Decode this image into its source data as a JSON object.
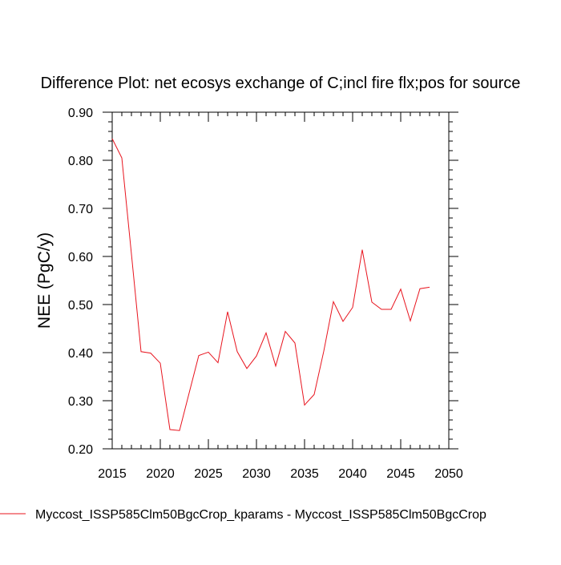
{
  "chart_data": {
    "type": "line",
    "title": "Difference Plot: net ecosys exchange of C;incl fire flx;pos for source",
    "xlabel": "",
    "ylabel": "NEE  (PgC/y)",
    "xlim": [
      2015,
      2050
    ],
    "ylim": [
      0.2,
      0.9
    ],
    "xticks": [
      2015,
      2020,
      2025,
      2030,
      2035,
      2040,
      2045,
      2050
    ],
    "yticks": [
      0.2,
      0.3,
      0.4,
      0.5,
      0.6,
      0.7,
      0.8,
      0.9
    ],
    "xtick_labels": [
      "2015",
      "2020",
      "2025",
      "2030",
      "2035",
      "2040",
      "2045",
      "2050"
    ],
    "ytick_labels": [
      "0.20",
      "0.30",
      "0.40",
      "0.50",
      "0.60",
      "0.70",
      "0.80",
      "0.90"
    ],
    "grid": false,
    "legend_position": "bottom",
    "series": [
      {
        "name": "Myccost_ISSP585Clm50BgcCrop_kparams - Myccost_ISSP585Clm50BgcCrop",
        "color": "#e8141e",
        "x": [
          2015,
          2016,
          2017,
          2018,
          2019,
          2020,
          2021,
          2022,
          2023,
          2024,
          2025,
          2026,
          2027,
          2028,
          2029,
          2030,
          2031,
          2032,
          2033,
          2034,
          2035,
          2036,
          2037,
          2038,
          2039,
          2040,
          2041,
          2042,
          2043,
          2044,
          2045,
          2046,
          2047,
          2048
        ],
        "y": [
          0.845,
          0.805,
          0.605,
          0.402,
          0.399,
          0.378,
          0.24,
          0.238,
          0.316,
          0.394,
          0.401,
          0.379,
          0.485,
          0.402,
          0.367,
          0.393,
          0.441,
          0.372,
          0.444,
          0.42,
          0.291,
          0.313,
          0.403,
          0.506,
          0.465,
          0.494,
          0.614,
          0.505,
          0.49,
          0.49,
          0.532,
          0.466,
          0.533,
          0.536
        ]
      }
    ]
  }
}
